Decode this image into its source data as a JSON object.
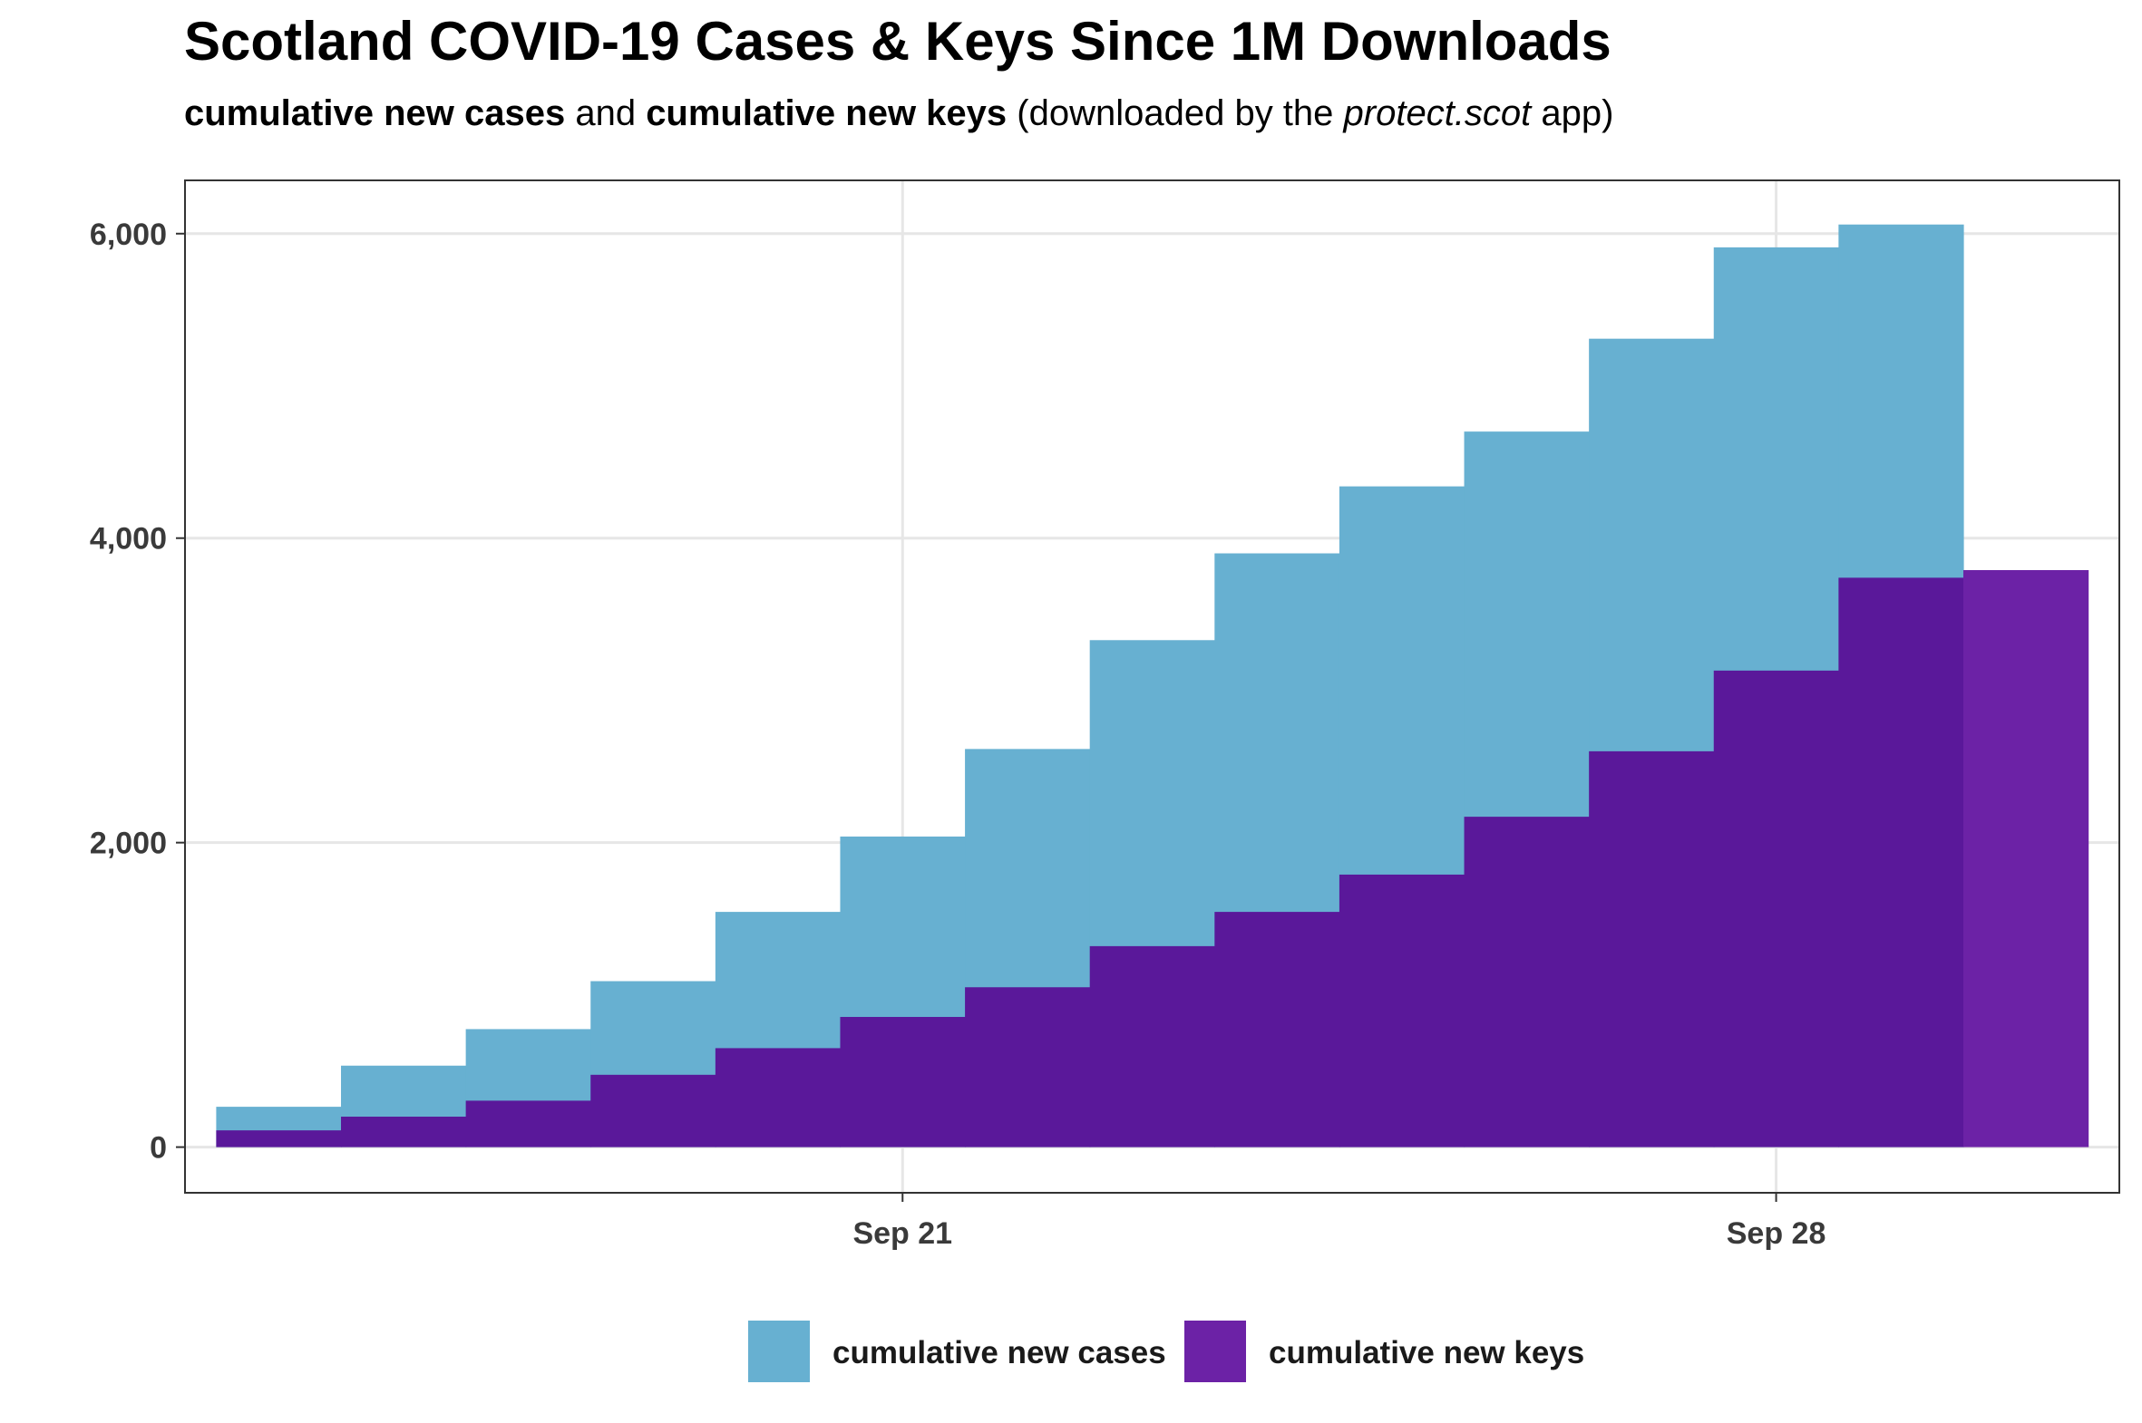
{
  "chart_data": {
    "type": "area",
    "title": "Scotland COVID-19 Cases & Keys Since 1M Downloads",
    "subtitle": {
      "part1": "cumulative new cases",
      "part2": " and ",
      "part3": "cumulative new keys",
      "part4": " (downloaded by the ",
      "part5": "protect.scot",
      "part6": " app)"
    },
    "xlabel": "",
    "ylabel": "",
    "x": [
      "2020-09-16",
      "2020-09-17",
      "2020-09-18",
      "2020-09-19",
      "2020-09-20",
      "2020-09-21",
      "2020-09-22",
      "2020-09-23",
      "2020-09-24",
      "2020-09-25",
      "2020-09-26",
      "2020-09-27",
      "2020-09-28",
      "2020-09-29",
      "2020-09-30"
    ],
    "x_ticks": [
      {
        "date": "2020-09-21",
        "label": "Sep 21"
      },
      {
        "date": "2020-09-28",
        "label": "Sep 28"
      }
    ],
    "y_ticks": [
      {
        "value": 0,
        "label": "0"
      },
      {
        "value": 2000,
        "label": "2,000"
      },
      {
        "value": 4000,
        "label": "4,000"
      },
      {
        "value": 6000,
        "label": "6,000"
      }
    ],
    "ylim": [
      -300,
      6350
    ],
    "grid": true,
    "legend_position": "bottom",
    "series": [
      {
        "name": "cumulative new cases",
        "color": "#67b0d1",
        "values": [
          265,
          535,
          775,
          1090,
          1545,
          2040,
          2615,
          3330,
          3900,
          4340,
          4700,
          5310,
          5910,
          6060,
          null
        ]
      },
      {
        "name": "cumulative new keys",
        "color": "#5a189a",
        "color_last": "#6c22a6",
        "values": [
          110,
          200,
          305,
          475,
          650,
          855,
          1050,
          1320,
          1545,
          1790,
          2170,
          2600,
          3130,
          3740,
          3790
        ]
      }
    ]
  }
}
